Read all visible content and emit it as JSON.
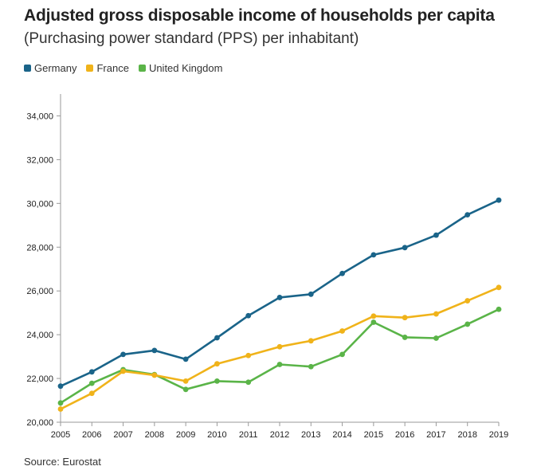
{
  "title": "Adjusted gross disposable income of households per capita",
  "subtitle": "(Purchasing power standard (PPS) per inhabitant)",
  "source": "Source: Eurostat",
  "chart_data": {
    "type": "line",
    "x": [
      "2005",
      "2006",
      "2007",
      "2008",
      "2009",
      "2010",
      "2011",
      "2012",
      "2013",
      "2014",
      "2015",
      "2016",
      "2017",
      "2018",
      "2019"
    ],
    "series": [
      {
        "name": "Germany",
        "color": "#1a6489",
        "values": [
          21650,
          22300,
          23100,
          23280,
          22880,
          23860,
          24870,
          25700,
          25850,
          26800,
          27650,
          27980,
          28550,
          29480,
          30150
        ]
      },
      {
        "name": "France",
        "color": "#f0b31a",
        "values": [
          20600,
          21320,
          22330,
          22150,
          21880,
          22670,
          23050,
          23450,
          23720,
          24170,
          24850,
          24780,
          24950,
          25550,
          26160
        ]
      },
      {
        "name": "United Kingdom",
        "color": "#5ab448",
        "values": [
          20880,
          21780,
          22400,
          22180,
          21500,
          21880,
          21830,
          22640,
          22540,
          23100,
          24570,
          23880,
          23840,
          24480,
          25160
        ]
      }
    ],
    "yticks": [
      "20,000",
      "22,000",
      "24,000",
      "26,000",
      "28,000",
      "30,000",
      "32,000",
      "34,000"
    ],
    "ytick_values": [
      20000,
      22000,
      24000,
      26000,
      28000,
      30000,
      32000,
      34000
    ],
    "ylim": [
      20000,
      35000
    ],
    "grid": false,
    "legend_position": "top-left"
  }
}
